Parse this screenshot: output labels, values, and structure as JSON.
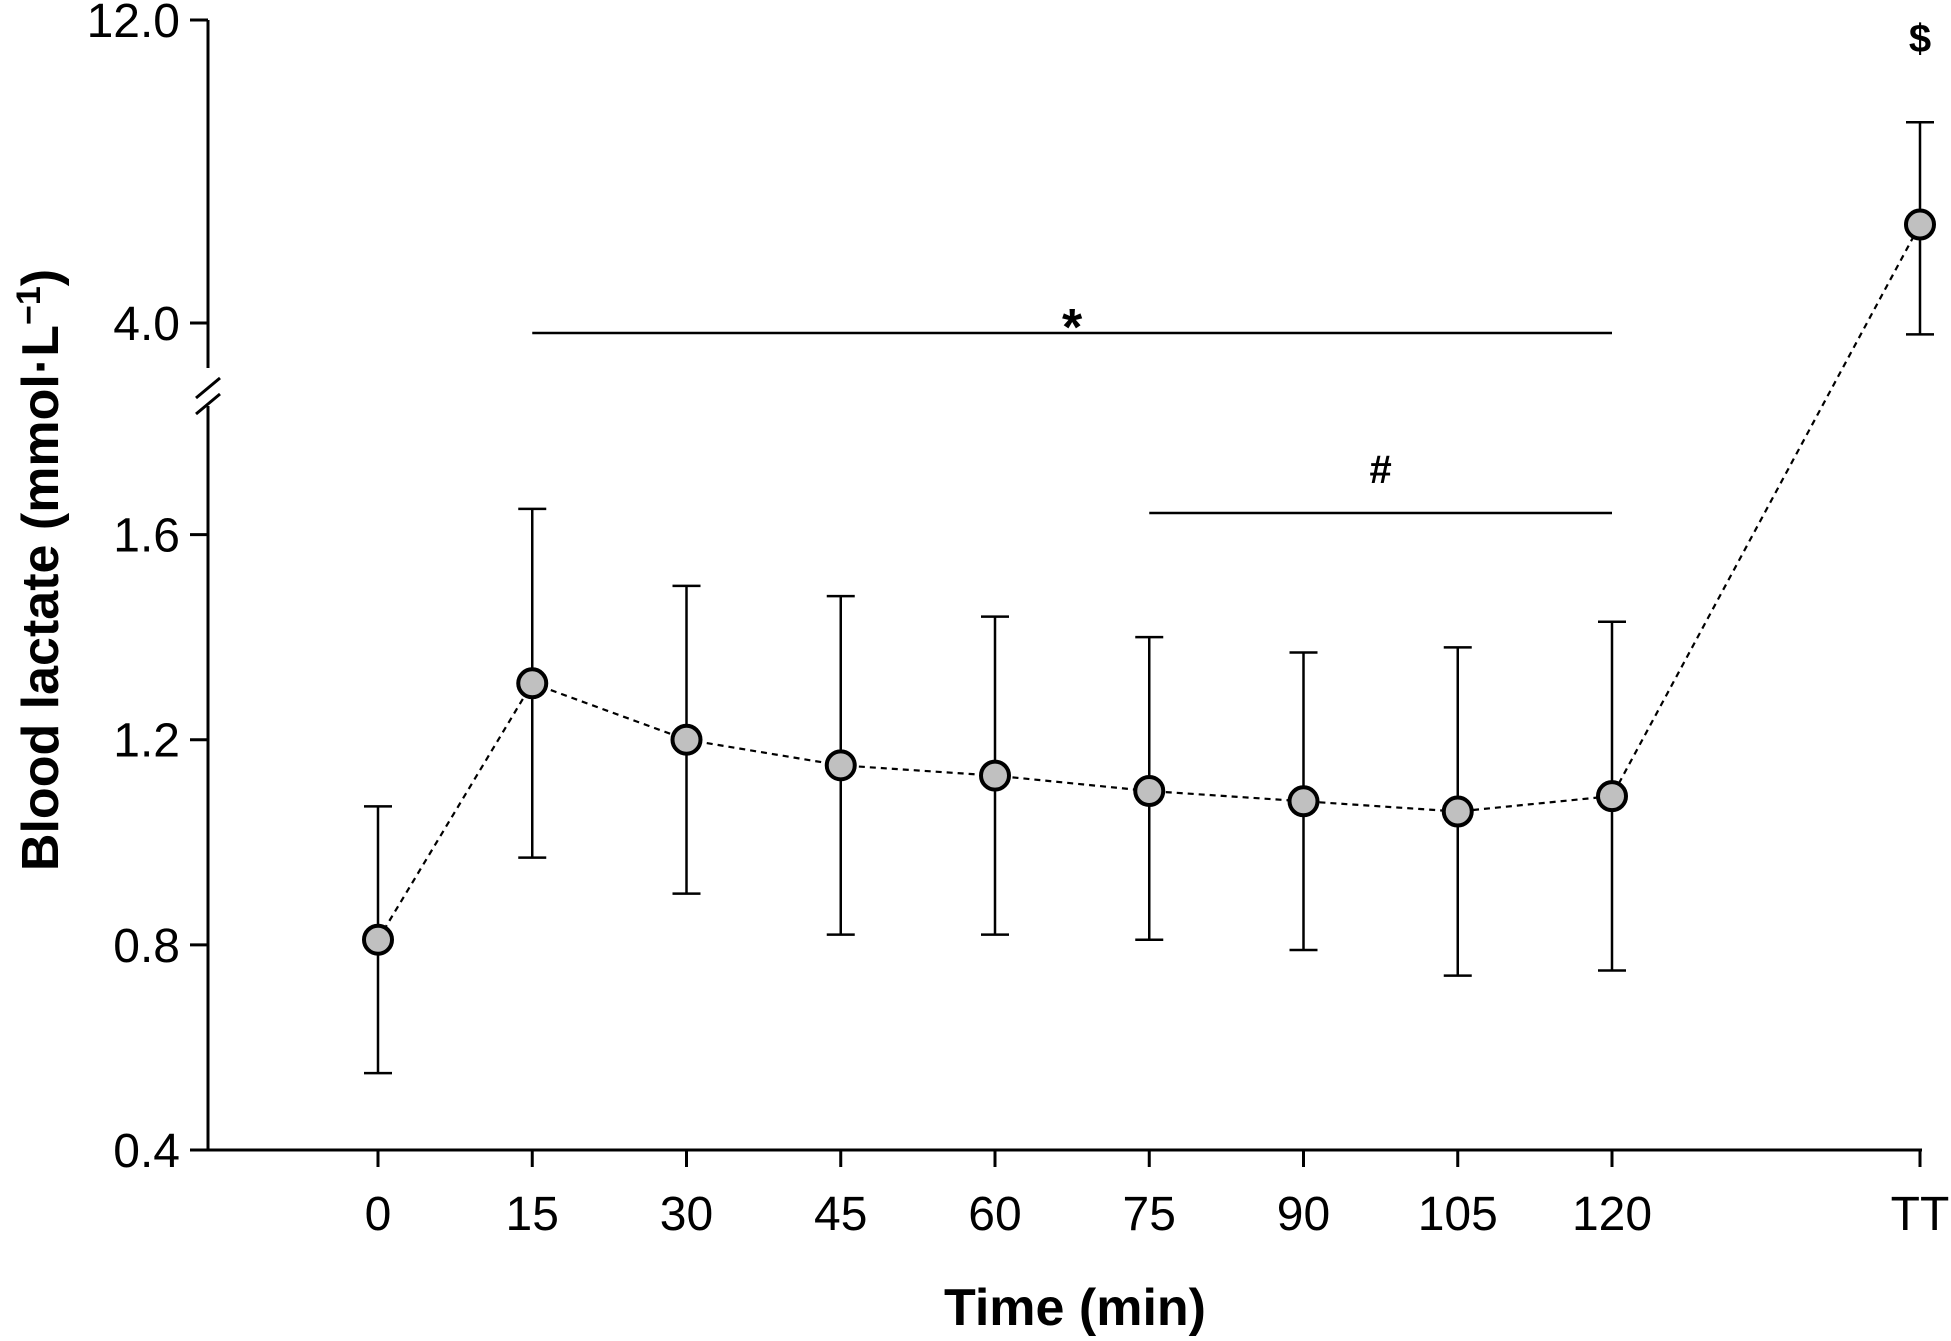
{
  "chart_data": {
    "type": "line",
    "xlabel": "Time (min)",
    "ylabel": "Blood lactate (mmol·L⁻¹)",
    "ylabel_parts": {
      "main": "Blood lactate (mmol·L",
      "sup": "−1",
      "close": ")"
    },
    "x_tick_labels": [
      "0",
      "15",
      "30",
      "45",
      "60",
      "75",
      "90",
      "105",
      "120",
      "TT"
    ],
    "y_axis": {
      "broken": true,
      "lower_segment": {
        "ylim": [
          0.4,
          1.8
        ],
        "ticks": [
          "0.4",
          "0.8",
          "1.2",
          "1.6"
        ]
      },
      "upper_segment": {
        "ylim": [
          4.0,
          12.0
        ],
        "ticks": [
          "4.0",
          "12.0"
        ]
      }
    },
    "series": [
      {
        "line_style": "dashed",
        "marker": "circle",
        "marker_color": "#c0c0c0",
        "points": [
          {
            "x": "0",
            "y": 0.81,
            "err_low": 0.55,
            "err_high": 1.07
          },
          {
            "x": "15",
            "y": 1.31,
            "err_low": 0.97,
            "err_high": 1.65
          },
          {
            "x": "30",
            "y": 1.2,
            "err_low": 0.9,
            "err_high": 1.5
          },
          {
            "x": "45",
            "y": 1.15,
            "err_low": 0.82,
            "err_high": 1.48
          },
          {
            "x": "60",
            "y": 1.13,
            "err_low": 0.82,
            "err_high": 1.44
          },
          {
            "x": "75",
            "y": 1.1,
            "err_low": 0.81,
            "err_high": 1.4
          },
          {
            "x": "90",
            "y": 1.08,
            "err_low": 0.79,
            "err_high": 1.37
          },
          {
            "x": "105",
            "y": 1.06,
            "err_low": 0.74,
            "err_high": 1.38
          },
          {
            "x": "120",
            "y": 1.09,
            "err_low": 0.75,
            "err_high": 1.43
          },
          {
            "x": "TT",
            "y": 6.6,
            "err_low": 3.7,
            "err_high": 9.3
          }
        ]
      }
    ],
    "annotations": [
      {
        "label": "*",
        "from": "15",
        "to": "120",
        "level": "upper"
      },
      {
        "label": "#",
        "from": "75",
        "to": "120",
        "level": "lower"
      },
      {
        "label": "$",
        "at": "TT",
        "level": "top"
      }
    ],
    "grid": false,
    "legend": "none"
  }
}
